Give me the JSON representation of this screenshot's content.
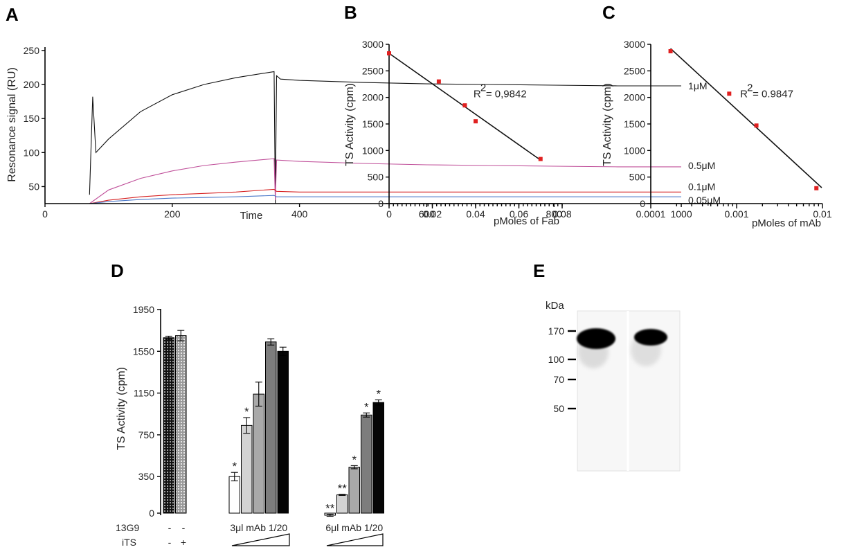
{
  "panels": [
    {
      "letter": "A",
      "chart_data": {
        "type": "line",
        "xlabel": "Time",
        "ylabel": "Resonance signal (RU)",
        "xlim": [
          0,
          1050
        ],
        "ylim": [
          25,
          255
        ],
        "xticks": [
          0,
          200,
          400,
          600,
          800,
          1000
        ],
        "yticks": [
          50,
          100,
          150,
          200,
          250
        ],
        "series": [
          {
            "name": "1μM",
            "color": "#111111",
            "points": [
              [
                70,
                38
              ],
              [
                75,
                182
              ],
              [
                80,
                100
              ],
              [
                100,
                120
              ],
              [
                150,
                160
              ],
              [
                200,
                185
              ],
              [
                250,
                200
              ],
              [
                300,
                210
              ],
              [
                360,
                219
              ],
              [
                362,
                20
              ],
              [
                364,
                213
              ],
              [
                370,
                208
              ],
              [
                400,
                206
              ],
              [
                500,
                203
              ],
              [
                600,
                201
              ],
              [
                700,
                200
              ],
              [
                800,
                199
              ],
              [
                900,
                198
              ],
              [
                1000,
                198
              ]
            ]
          },
          {
            "name": "0.5μM",
            "color": "#c0509a",
            "points": [
              [
                70,
                22
              ],
              [
                100,
                45
              ],
              [
                150,
                62
              ],
              [
                200,
                73
              ],
              [
                250,
                81
              ],
              [
                300,
                86
              ],
              [
                360,
                91
              ],
              [
                362,
                30
              ],
              [
                364,
                89
              ],
              [
                400,
                87
              ],
              [
                500,
                84
              ],
              [
                600,
                82
              ],
              [
                700,
                81
              ],
              [
                800,
                80
              ],
              [
                900,
                79
              ],
              [
                1000,
                79
              ]
            ]
          },
          {
            "name": "0.1μM",
            "color": "#d62020",
            "points": [
              [
                70,
                22
              ],
              [
                100,
                30
              ],
              [
                150,
                35
              ],
              [
                200,
                38
              ],
              [
                250,
                40
              ],
              [
                300,
                42
              ],
              [
                360,
                46
              ],
              [
                364,
                43
              ],
              [
                400,
                42
              ],
              [
                500,
                42
              ],
              [
                600,
                42
              ],
              [
                700,
                42
              ],
              [
                800,
                42
              ],
              [
                900,
                42
              ],
              [
                1000,
                42
              ]
            ]
          },
          {
            "name": "0.05μM",
            "color": "#4a78c8",
            "points": [
              [
                70,
                22
              ],
              [
                100,
                28
              ],
              [
                150,
                31
              ],
              [
                200,
                33
              ],
              [
                250,
                34
              ],
              [
                300,
                35
              ],
              [
                360,
                37
              ],
              [
                364,
                35
              ],
              [
                400,
                35
              ],
              [
                500,
                35
              ],
              [
                600,
                35
              ],
              [
                700,
                35
              ],
              [
                800,
                35
              ],
              [
                900,
                35
              ],
              [
                1000,
                35
              ]
            ]
          }
        ]
      }
    },
    {
      "letter": "B",
      "chart_data": {
        "type": "scatter",
        "xlabel": "pMoles of Fab",
        "ylabel": "TS Activity (cpm)",
        "xlim": [
          0,
          0.08
        ],
        "ylim": [
          0,
          3000
        ],
        "xticks": [
          0,
          0.02,
          0.04,
          0.06,
          0.08
        ],
        "xtick_labels": [
          "0",
          "0.02",
          "0.04",
          "0.06",
          "0.08"
        ],
        "yticks": [
          0,
          500,
          1000,
          1500,
          2000,
          2500,
          3000
        ],
        "points": [
          [
            0,
            2830
          ],
          [
            0.023,
            2300
          ],
          [
            0.035,
            1850
          ],
          [
            0.04,
            1550
          ],
          [
            0.07,
            840
          ]
        ],
        "fit_line": [
          [
            0,
            2830
          ],
          [
            0.07,
            820
          ]
        ],
        "annotation": {
          "base": "R",
          "sup": "2",
          "text": " = 0,9842",
          "x": 0.039,
          "y": 2000
        },
        "point_color": "#e02020"
      }
    },
    {
      "letter": "C",
      "chart_data": {
        "type": "scatter",
        "xscale": "log",
        "xlabel": "pMoles of mAb",
        "ylabel": "TS Activity (cpm)",
        "xlim": [
          0.0001,
          0.01
        ],
        "ylim": [
          0,
          3000
        ],
        "xticks": [
          0.0001,
          0.001,
          0.01
        ],
        "xtick_labels": [
          "0.0001",
          "0.001",
          "0.01"
        ],
        "yticks": [
          0,
          500,
          1000,
          1500,
          2000,
          2500,
          3000
        ],
        "points": [
          [
            0.00017,
            2870
          ],
          [
            0.00082,
            2070
          ],
          [
            0.0017,
            1470
          ],
          [
            0.0085,
            290
          ]
        ],
        "fit_line": [
          [
            0.00017,
            2920
          ],
          [
            0.0098,
            300
          ]
        ],
        "annotation": {
          "base": "R",
          "sup": "2",
          "text": " = 0.9847",
          "x": 0.0011,
          "y": 2000
        },
        "point_color": "#e02020"
      }
    },
    {
      "letter": "D",
      "chart_data": {
        "type": "bar",
        "ylabel": "TS Activity (cpm)",
        "ylim": [
          0,
          1950
        ],
        "yticks": [
          0,
          350,
          750,
          1150,
          1550,
          1950
        ],
        "groups": [
          {
            "label": "",
            "bars": [
              {
                "value": 1680,
                "err": 15,
                "fill": "dots-black",
                "star": ""
              },
              {
                "value": 1700,
                "err": 50,
                "fill": "dots-grey",
                "star": ""
              }
            ]
          },
          {
            "label": "3μl mAb 1/20",
            "bars": [
              {
                "value": 350,
                "err": 40,
                "fill": "#ffffff",
                "star": "*"
              },
              {
                "value": 840,
                "err": 75,
                "fill": "#d3d3d3",
                "star": "*"
              },
              {
                "value": 1140,
                "err": 115,
                "fill": "#a9a9a9",
                "star": ""
              },
              {
                "value": 1640,
                "err": 30,
                "fill": "#7d7d7d",
                "star": ""
              },
              {
                "value": 1550,
                "err": 40,
                "fill": "#050505",
                "star": ""
              }
            ]
          },
          {
            "label": "6μl mAb 1/20",
            "bars": [
              {
                "value": -20,
                "err": 10,
                "fill": "#ffffff",
                "star": "**"
              },
              {
                "value": 175,
                "err": 5,
                "fill": "#d3d3d3",
                "star": "**"
              },
              {
                "value": 440,
                "err": 15,
                "fill": "#a9a9a9",
                "star": "*"
              },
              {
                "value": 940,
                "err": 20,
                "fill": "#7d7d7d",
                "star": "*"
              },
              {
                "value": 1060,
                "err": 25,
                "fill": "#050505",
                "star": "*"
              }
            ]
          }
        ],
        "row_labels": [
          "13G9",
          "iTS"
        ],
        "row_values": [
          [
            "-",
            "-"
          ],
          [
            "-",
            "+"
          ]
        ]
      }
    },
    {
      "letter": "E",
      "blot": {
        "unit": "kDa",
        "markers": [
          "170",
          "100",
          "70",
          "50"
        ]
      }
    }
  ]
}
